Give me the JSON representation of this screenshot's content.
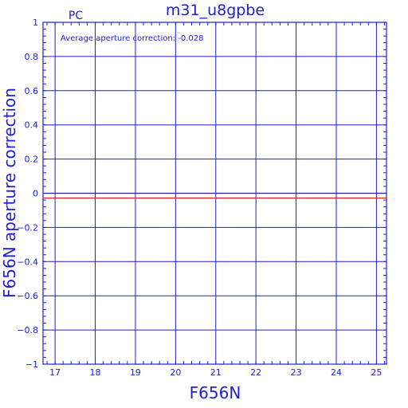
{
  "chart_data": {
    "type": "line",
    "title": "m31_u8gpbe",
    "corner_label": "PC",
    "xlabel": "F656N",
    "ylabel": "F656N aperture correction",
    "annotation": "Average aperture correction: -0.028",
    "xlim": [
      16.7,
      25.25
    ],
    "ylim": [
      -1,
      1
    ],
    "x_ticks": [
      17,
      18,
      19,
      20,
      21,
      22,
      23,
      24,
      25
    ],
    "x_tick_labels": [
      "17",
      "18",
      "19",
      "20",
      "21",
      "22",
      "23",
      "24",
      "25"
    ],
    "y_ticks": [
      -1,
      -0.8,
      -0.6,
      -0.4,
      -0.2,
      0,
      0.2,
      0.4,
      0.6,
      0.8,
      1
    ],
    "y_tick_labels": [
      "−1",
      "−0.8",
      "−0.6",
      "−0.4",
      "−0.2",
      "0",
      "0.2",
      "0.4",
      "0.6",
      "0.8",
      "1"
    ],
    "grid": true,
    "hlines": [
      {
        "y": 0,
        "color": "#1f1fcf"
      },
      {
        "y": -0.028,
        "color": "#e0201c"
      }
    ],
    "colors": {
      "axes": "#1f1fcf",
      "correction_line": "#e0201c"
    }
  }
}
